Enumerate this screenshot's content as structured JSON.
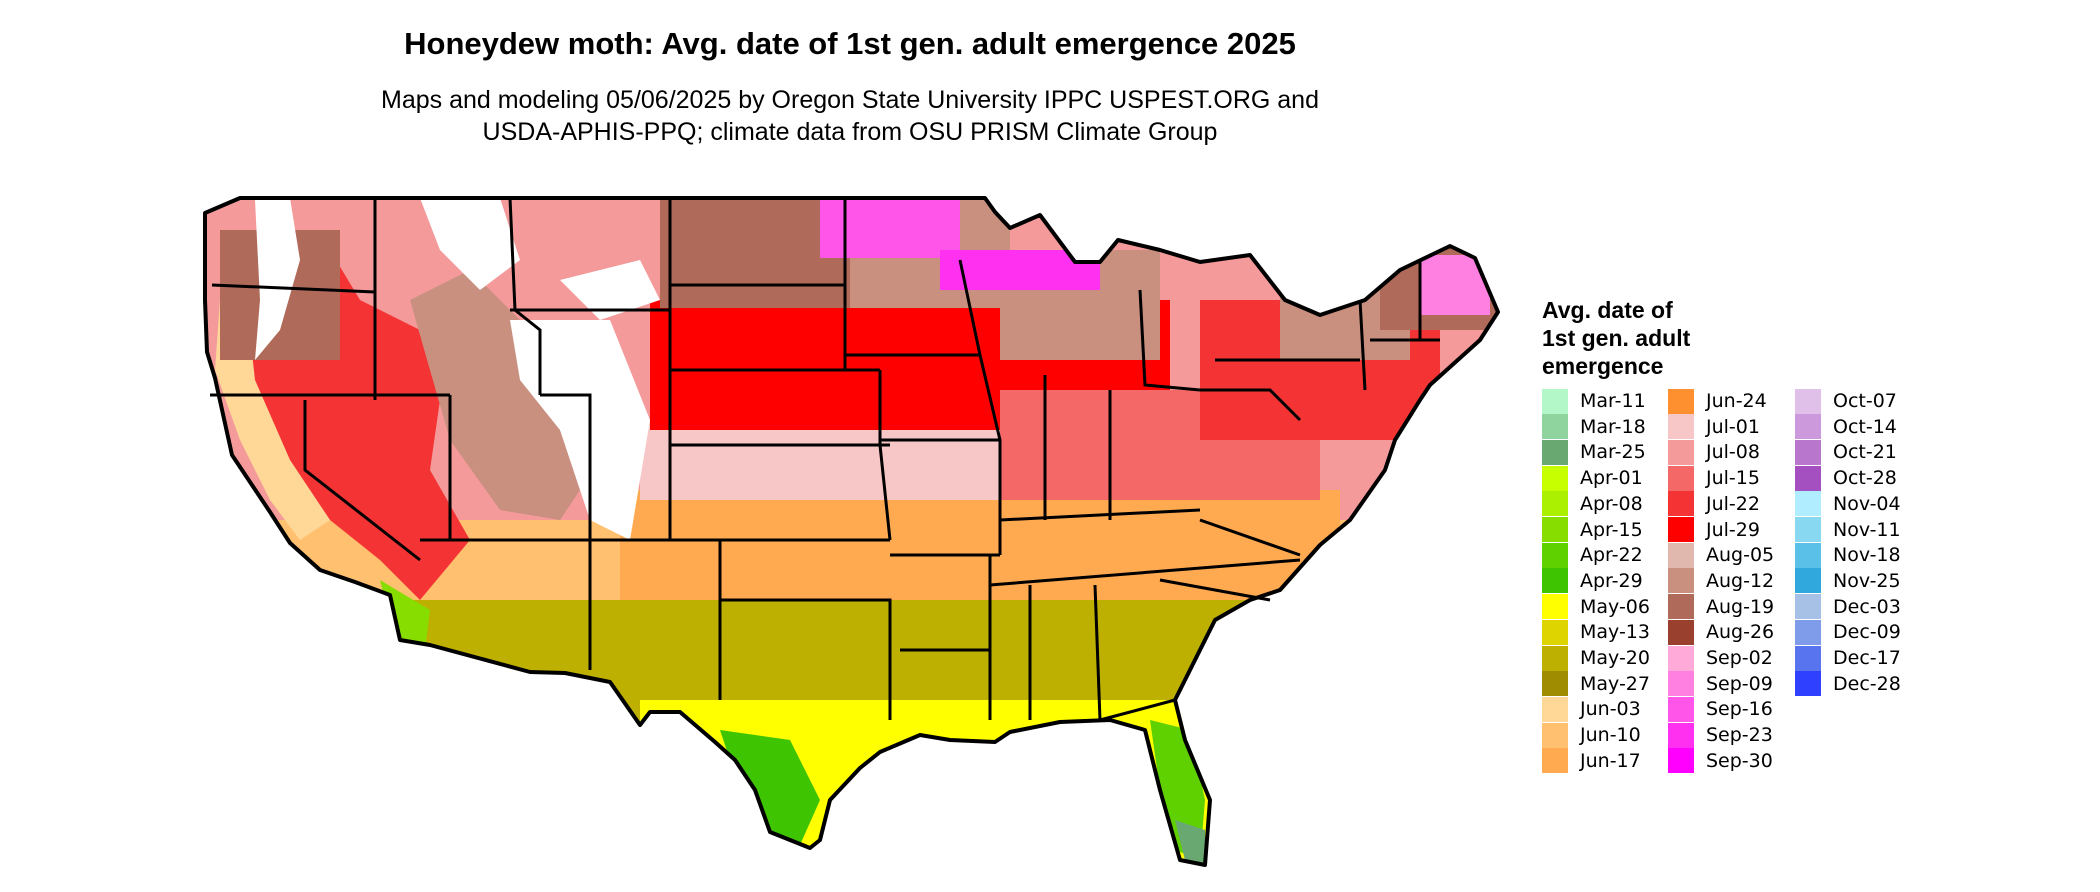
{
  "title": "Honeydew moth: Avg. date of 1st gen. adult emergence 2025",
  "subtitle": {
    "line1": "Maps and modeling 05/06/2025 by Oregon State University IPPC USPEST.ORG and",
    "line2": "USDA-APHIS-PPQ; climate data from OSU PRISM Climate Group"
  },
  "legend": {
    "title_line1": "Avg. date of",
    "title_line2": "1st gen. adult",
    "title_line3": "emergence",
    "items": [
      {
        "label": "Mar-11",
        "color": "#b3f7c9"
      },
      {
        "label": "Mar-18",
        "color": "#8fd49f"
      },
      {
        "label": "Mar-25",
        "color": "#6aa872"
      },
      {
        "label": "Apr-01",
        "color": "#c8ff00"
      },
      {
        "label": "Apr-08",
        "color": "#aaf000"
      },
      {
        "label": "Apr-15",
        "color": "#88dd00"
      },
      {
        "label": "Apr-22",
        "color": "#5fd000"
      },
      {
        "label": "Apr-29",
        "color": "#3ec400"
      },
      {
        "label": "May-06",
        "color": "#ffff00"
      },
      {
        "label": "May-13",
        "color": "#ddd400"
      },
      {
        "label": "May-20",
        "color": "#bdb000"
      },
      {
        "label": "May-27",
        "color": "#a08c00"
      },
      {
        "label": "Jun-03",
        "color": "#ffd898"
      },
      {
        "label": "Jun-10",
        "color": "#ffc070"
      },
      {
        "label": "Jun-17",
        "color": "#ffaa50"
      },
      {
        "label": "Jun-24",
        "color": "#ff9030"
      },
      {
        "label": "Jul-01",
        "color": "#f7c6c6"
      },
      {
        "label": "Jul-08",
        "color": "#f49a9a"
      },
      {
        "label": "Jul-15",
        "color": "#f46868"
      },
      {
        "label": "Jul-22",
        "color": "#f43434"
      },
      {
        "label": "Jul-29",
        "color": "#ff0000"
      },
      {
        "label": "Aug-05",
        "color": "#e0b8ae"
      },
      {
        "label": "Aug-12",
        "color": "#c99080"
      },
      {
        "label": "Aug-19",
        "color": "#b06a5a"
      },
      {
        "label": "Aug-26",
        "color": "#99402e"
      },
      {
        "label": "Sep-02",
        "color": "#ffaad8"
      },
      {
        "label": "Sep-09",
        "color": "#ff80e0"
      },
      {
        "label": "Sep-16",
        "color": "#ff55e8"
      },
      {
        "label": "Sep-23",
        "color": "#ff30f0"
      },
      {
        "label": "Sep-30",
        "color": "#ff00ff"
      },
      {
        "label": "Oct-07",
        "color": "#e0c0e8"
      },
      {
        "label": "Oct-14",
        "color": "#cc99dd"
      },
      {
        "label": "Oct-21",
        "color": "#b877cc"
      },
      {
        "label": "Oct-28",
        "color": "#a450c0"
      },
      {
        "label": "Nov-04",
        "color": "#b0eeff"
      },
      {
        "label": "Nov-11",
        "color": "#88d8f2"
      },
      {
        "label": "Nov-18",
        "color": "#5ac0e8"
      },
      {
        "label": "Nov-25",
        "color": "#30a8dd"
      },
      {
        "label": "Dec-03",
        "color": "#a6c0e6"
      },
      {
        "label": "Dec-09",
        "color": "#7f9cea"
      },
      {
        "label": "Dec-17",
        "color": "#5874ee"
      },
      {
        "label": "Dec-28",
        "color": "#3040ff"
      }
    ]
  }
}
